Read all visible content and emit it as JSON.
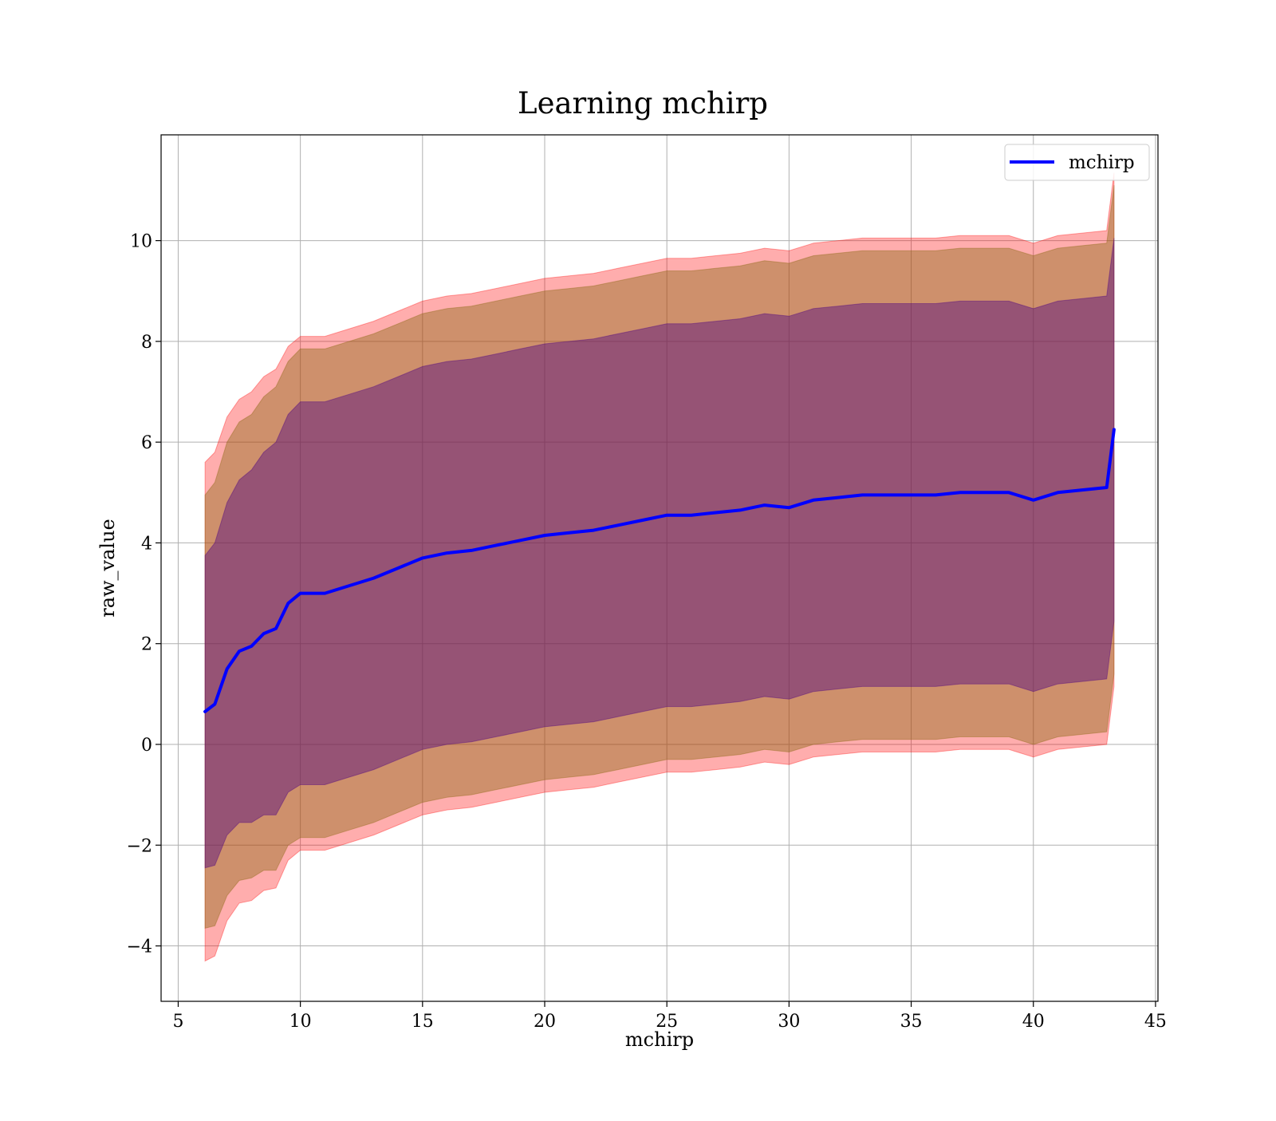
{
  "chart_data": {
    "type": "line",
    "title": "Learning mchirp",
    "xlabel": "mchirp",
    "ylabel": "raw_value",
    "xlim": [
      4.3,
      45.1
    ],
    "ylim": [
      -5.1,
      12.1
    ],
    "x_ticks": [
      5,
      10,
      15,
      20,
      25,
      30,
      35,
      40,
      45
    ],
    "y_ticks": [
      -4,
      -2,
      0,
      2,
      4,
      6,
      8,
      10
    ],
    "x_tick_labels": [
      "5",
      "10",
      "15",
      "20",
      "25",
      "30",
      "35",
      "40",
      "45"
    ],
    "y_tick_labels": [
      "−4",
      "−2",
      "0",
      "2",
      "4",
      "6",
      "8",
      "10"
    ],
    "grid": true,
    "legend": {
      "position": "top-right",
      "entries": [
        "mchirp"
      ]
    },
    "colors": {
      "line": "#0000ff",
      "band_sigma3": "#ff0000",
      "band_sigma2": "#8b6914",
      "band_sigma1": "#4b0082",
      "grid": "#b0b0b0"
    },
    "x": [
      6.1,
      6.5,
      7.0,
      7.5,
      8.0,
      8.5,
      9.0,
      9.5,
      10.0,
      11.0,
      12.0,
      13.0,
      14.0,
      15.0,
      16.0,
      17.0,
      18.0,
      19.0,
      20.0,
      21.0,
      22.0,
      23.0,
      24.0,
      25.0,
      26.0,
      27.0,
      28.0,
      29.0,
      30.0,
      31.0,
      32.0,
      33.0,
      34.0,
      35.0,
      36.0,
      37.0,
      38.0,
      39.0,
      40.0,
      41.0,
      42.0,
      43.0,
      43.3
    ],
    "series": [
      {
        "name": "mchirp",
        "y": [
          0.65,
          0.8,
          1.5,
          1.85,
          1.95,
          2.2,
          2.3,
          2.8,
          3.0,
          3.0,
          3.15,
          3.3,
          3.5,
          3.7,
          3.8,
          3.85,
          3.95,
          4.05,
          4.15,
          4.2,
          4.25,
          4.35,
          4.45,
          4.55,
          4.55,
          4.6,
          4.65,
          4.75,
          4.7,
          4.85,
          4.9,
          4.95,
          4.95,
          4.95,
          4.95,
          5.0,
          5.0,
          5.0,
          4.85,
          5.0,
          5.05,
          5.1,
          6.25
        ],
        "sigma1": [
          3.1,
          3.2,
          3.3,
          3.4,
          3.5,
          3.6,
          3.7,
          3.75,
          3.8,
          3.8,
          3.8,
          3.8,
          3.8,
          3.8,
          3.8,
          3.8,
          3.8,
          3.8,
          3.8,
          3.8,
          3.8,
          3.8,
          3.8,
          3.8,
          3.8,
          3.8,
          3.8,
          3.8,
          3.8,
          3.8,
          3.8,
          3.8,
          3.8,
          3.8,
          3.8,
          3.8,
          3.8,
          3.8,
          3.8,
          3.8,
          3.8,
          3.8,
          3.8
        ],
        "sigma2": [
          4.3,
          4.4,
          4.5,
          4.55,
          4.6,
          4.7,
          4.8,
          4.8,
          4.85,
          4.85,
          4.85,
          4.85,
          4.85,
          4.85,
          4.85,
          4.85,
          4.85,
          4.85,
          4.85,
          4.85,
          4.85,
          4.85,
          4.85,
          4.85,
          4.85,
          4.85,
          4.85,
          4.85,
          4.85,
          4.85,
          4.85,
          4.85,
          4.85,
          4.85,
          4.85,
          4.85,
          4.85,
          4.85,
          4.85,
          4.85,
          4.85,
          4.85,
          4.85
        ],
        "sigma3": [
          4.95,
          5.0,
          5.0,
          5.0,
          5.05,
          5.1,
          5.15,
          5.1,
          5.1,
          5.1,
          5.1,
          5.1,
          5.1,
          5.1,
          5.1,
          5.1,
          5.1,
          5.1,
          5.1,
          5.1,
          5.1,
          5.1,
          5.1,
          5.1,
          5.1,
          5.1,
          5.1,
          5.1,
          5.1,
          5.1,
          5.1,
          5.1,
          5.1,
          5.1,
          5.1,
          5.1,
          5.1,
          5.1,
          5.1,
          5.1,
          5.1,
          5.1,
          5.1
        ]
      }
    ]
  }
}
